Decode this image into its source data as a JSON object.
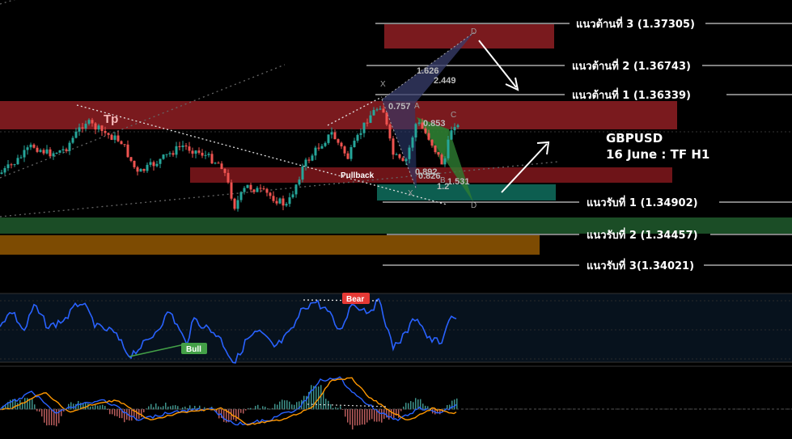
{
  "chart_data": {
    "type": "candlestick",
    "title": "GBPUSD",
    "subtitle": "16 June : TF H1",
    "resistance_levels": [
      {
        "label": "แนวต้านที่ 3 (1.37305)",
        "value": 1.37305
      },
      {
        "label": "แนวต้านที่ 2 (1.36743)",
        "value": 1.36743
      },
      {
        "label": "แนวต้านที่ 1 (1.36339)",
        "value": 1.36339
      }
    ],
    "support_levels": [
      {
        "label": "แนวรับที่ 1 (1.34902)",
        "value": 1.34902
      },
      {
        "label": "แนวรับที่ 2 (1.34457)",
        "value": 1.34457
      },
      {
        "label": "แนวรับที่ 3(1.34021)",
        "value": 1.34021
      }
    ],
    "annotations": {
      "pullback": "Pullback",
      "tp": "Tp",
      "bear": "Bear",
      "bull": "Bull"
    },
    "harmonic_points": [
      "X",
      "A",
      "B",
      "C",
      "D"
    ],
    "fib_labels": [
      "1.626",
      "2.449",
      "0.757",
      "0.853",
      "0.892",
      "0.826",
      "1.2",
      "1.531"
    ],
    "colors": {
      "resistance_zone": "#8b1a1f",
      "support_zone_green": "#1e5a2a",
      "support_zone_orange": "#8a5300",
      "teal_zone": "#0e6b5a",
      "candle_up": "#26a69a",
      "candle_down": "#ef5350",
      "rsi_line": "#2962ff",
      "macd_line": "#2962ff",
      "signal_line": "#ff9800",
      "bear_tag": "#e53935",
      "bull_tag": "#43a047"
    }
  }
}
